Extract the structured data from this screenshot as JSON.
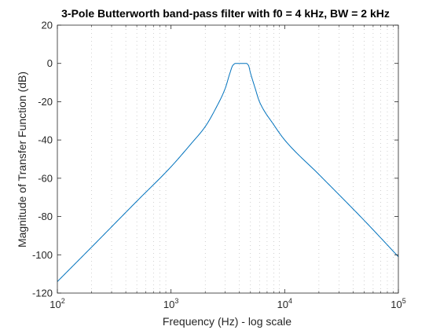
{
  "chart_data": {
    "type": "line",
    "title": "3-Pole Butterworth band-pass filter with f0 = 4 kHz, BW = 2 kHz",
    "xlabel": "Frequency (Hz) - log scale",
    "ylabel": "Magnitude of Transfer Function (dB)",
    "x_scale": "log",
    "xlim": [
      100,
      100000
    ],
    "ylim": [
      -120,
      20
    ],
    "x_ticks": [
      {
        "base": "10",
        "exp": "2",
        "value": 100
      },
      {
        "base": "10",
        "exp": "3",
        "value": 1000
      },
      {
        "base": "10",
        "exp": "4",
        "value": 10000
      },
      {
        "base": "10",
        "exp": "5",
        "value": 100000
      }
    ],
    "y_ticks": [
      {
        "value": 20,
        "label": "20"
      },
      {
        "value": 0,
        "label": "0"
      },
      {
        "value": -20,
        "label": "-20"
      },
      {
        "value": -40,
        "label": "-40"
      },
      {
        "value": -60,
        "label": "-60"
      },
      {
        "value": -80,
        "label": "-80"
      },
      {
        "value": -100,
        "label": "-100"
      },
      {
        "value": -120,
        "label": "-120"
      }
    ],
    "grid": "minor-x-dotted",
    "series": [
      {
        "color": "#0072bd",
        "x": [
          100,
          200,
          500,
          1000,
          1500,
          2000,
          2500,
          3000,
          3300,
          3500,
          3700,
          4000,
          4300,
          4600,
          4800,
          5000,
          5500,
          6000,
          8000,
          10000,
          20000,
          50000,
          100000
        ],
        "y": [
          -114,
          -96,
          -72,
          -54,
          -42,
          -33,
          -23,
          -13,
          -5,
          -1,
          0,
          0,
          0,
          0,
          -1,
          -5,
          -13,
          -20,
          -32,
          -40,
          -58,
          -82,
          -101
        ]
      }
    ]
  }
}
